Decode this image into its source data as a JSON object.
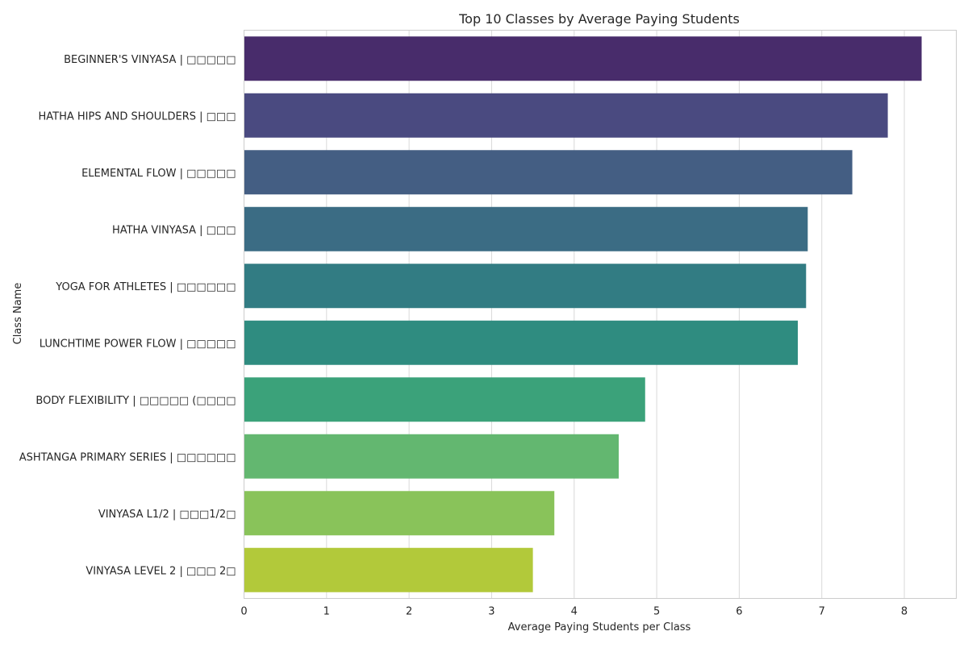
{
  "chart_data": {
    "type": "bar",
    "orientation": "horizontal",
    "title": "Top 10 Classes by Average Paying Students",
    "xlabel": "Average Paying Students per Class",
    "ylabel": "Class Name",
    "xlim": [
      0,
      8.63
    ],
    "xticks": [
      "0",
      "1",
      "2",
      "3",
      "4",
      "5",
      "6",
      "7",
      "8"
    ],
    "grid": true,
    "categories": [
      "BEGINNER'S VINYASA | □□□□□",
      "HATHA HIPS AND SHOULDERS | □□□",
      "ELEMENTAL FLOW | □□□□□",
      "HATHA VINYASA | □□□",
      "YOGA FOR ATHLETES | □□□□□□",
      "LUNCHTIME POWER FLOW | □□□□□",
      "BODY FLEXIBILITY | □□□□□ (□□□□",
      "ASHTANGA PRIMARY SERIES | □□□□□□",
      "VINYASA L1/2 | □□□1/2□",
      "VINYASA LEVEL 2 | □□□ 2□"
    ],
    "values": [
      8.21,
      7.8,
      7.37,
      6.83,
      6.81,
      6.71,
      4.86,
      4.54,
      3.76,
      3.5
    ],
    "colors": [
      "#482c6b",
      "#4a4a80",
      "#445e83",
      "#3b6c84",
      "#327c83",
      "#2f8c80",
      "#3ba27a",
      "#63b770",
      "#89c35a",
      "#b2c93a"
    ]
  }
}
